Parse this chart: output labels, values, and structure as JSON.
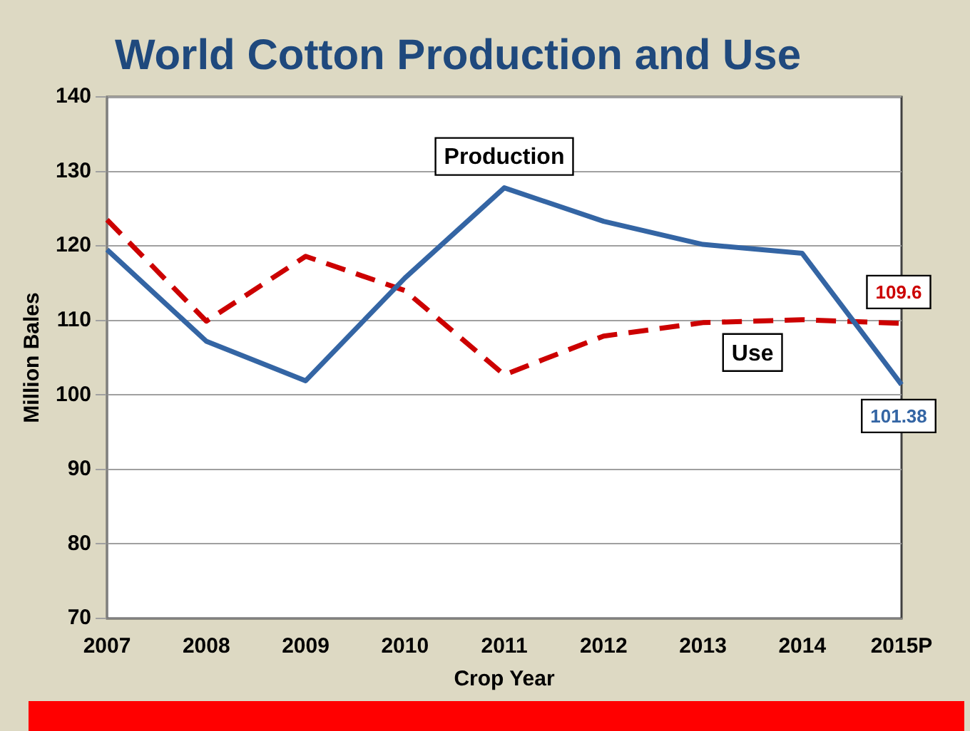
{
  "chart_data": {
    "type": "line",
    "title": "World Cotton Production and Use",
    "xlabel": "Crop Year",
    "ylabel": "Million Bales",
    "categories": [
      "2007",
      "2008",
      "2009",
      "2010",
      "2011",
      "2012",
      "2013",
      "2014",
      "2015P"
    ],
    "series": [
      {
        "name": "Production",
        "color": "#3465a4",
        "line_style": "solid",
        "values": [
          119.5,
          107.2,
          101.9,
          115.7,
          127.8,
          123.3,
          120.2,
          119,
          101.38
        ],
        "value_labels": [
          null,
          null,
          null,
          null,
          null,
          null,
          null,
          null,
          "101.38"
        ]
      },
      {
        "name": "Use",
        "color": "#cc0000",
        "line_style": "dashed",
        "values": [
          123.5,
          109.9,
          118.6,
          114,
          102.7,
          107.9,
          109.7,
          110.1,
          109.6
        ],
        "value_labels": [
          null,
          null,
          null,
          null,
          null,
          null,
          null,
          null,
          "109.6"
        ]
      }
    ],
    "ylim": [
      70,
      140
    ],
    "yticks": [
      70,
      80,
      90,
      100,
      110,
      120,
      130,
      140
    ],
    "grid": "y",
    "marker": "none"
  }
}
